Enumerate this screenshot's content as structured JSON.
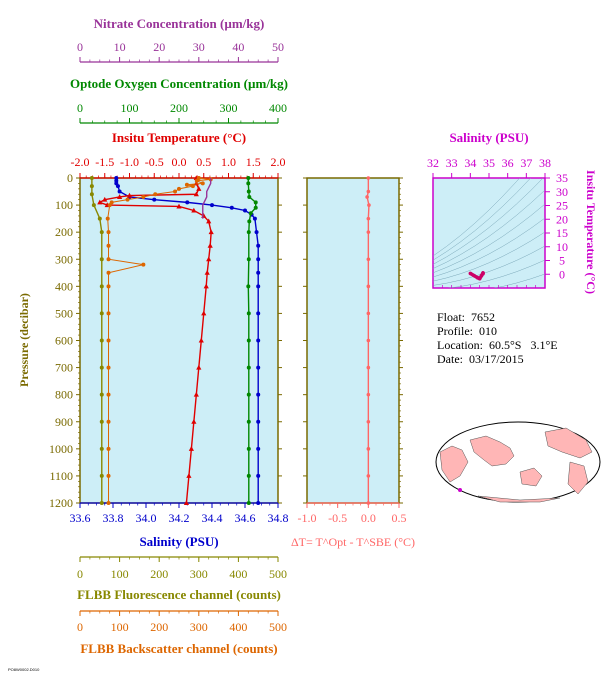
{
  "chart_data": [
    {
      "type": "line",
      "panel": "main-profile",
      "axes": {
        "pressure": {
          "label": "Pressure (decibar)",
          "range": [
            0,
            1200
          ],
          "ticks": [
            0,
            100,
            200,
            300,
            400,
            500,
            600,
            700,
            800,
            900,
            1000,
            1100,
            1200
          ],
          "inverted": true
        },
        "salinity": {
          "label": "Salinity (PSU)",
          "range": [
            33.6,
            34.8
          ],
          "ticks": [
            "33.6",
            "33.8",
            "34.0",
            "34.2",
            "34.4",
            "34.6",
            "34.8"
          ],
          "color": "#0000cc"
        },
        "temperature": {
          "label": "Insitu Temperature (°C)",
          "range": [
            -2.0,
            2.0
          ],
          "ticks": [
            "-2.0",
            "-1.5",
            "-1.0",
            "-0.5",
            "0.0",
            "0.5",
            "1.0",
            "1.5",
            "2.0"
          ],
          "color": "#e00000"
        },
        "oxygen": {
          "label": "Optode Oxygen Concentration (µm/kg)",
          "range": [
            0,
            400
          ],
          "ticks": [
            "0",
            "100",
            "200",
            "300",
            "400"
          ],
          "color": "#008800"
        },
        "nitrate": {
          "label": "Nitrate Concentration (µm/kg)",
          "range": [
            0,
            50
          ],
          "ticks": [
            "0",
            "10",
            "20",
            "30",
            "40",
            "50"
          ],
          "color": "#993399"
        },
        "fluorescence": {
          "label": "FLBB Fluorescence channel (counts)",
          "range": [
            0,
            500
          ],
          "ticks": [
            "0",
            "100",
            "200",
            "300",
            "400",
            "500"
          ],
          "color": "#888800"
        },
        "backscatter": {
          "label": "FLBB Backscatter channel (counts)",
          "range": [
            0,
            500
          ],
          "ticks": [
            "0",
            "100",
            "200",
            "300",
            "400",
            "500"
          ],
          "color": "#dd6600"
        }
      },
      "series": [
        {
          "key": "salinity",
          "color": "#0000cc",
          "marker": "circle",
          "points": [
            [
              0,
              33.82
            ],
            [
              10,
              33.82
            ],
            [
              20,
              33.82
            ],
            [
              30,
              33.83
            ],
            [
              50,
              33.84
            ],
            [
              70,
              33.9
            ],
            [
              80,
              34.05
            ],
            [
              90,
              34.25
            ],
            [
              100,
              34.4
            ],
            [
              110,
              34.52
            ],
            [
              120,
              34.6
            ],
            [
              135,
              34.64
            ],
            [
              150,
              34.66
            ],
            [
              200,
              34.67
            ],
            [
              250,
              34.68
            ],
            [
              300,
              34.68
            ],
            [
              350,
              34.68
            ],
            [
              400,
              34.68
            ],
            [
              500,
              34.68
            ],
            [
              600,
              34.68
            ],
            [
              700,
              34.68
            ],
            [
              800,
              34.68
            ],
            [
              900,
              34.68
            ],
            [
              1000,
              34.68
            ],
            [
              1100,
              34.68
            ],
            [
              1200,
              34.68
            ]
          ]
        },
        {
          "key": "temperature",
          "color": "#e00000",
          "marker": "triangle",
          "points": [
            [
              0,
              0.35
            ],
            [
              20,
              0.35
            ],
            [
              40,
              0.4
            ],
            [
              60,
              0.35
            ],
            [
              65,
              -1.0
            ],
            [
              70,
              -1.2
            ],
            [
              80,
              -1.5
            ],
            [
              90,
              -1.6
            ],
            [
              100,
              -1.45
            ],
            [
              105,
              0.0
            ],
            [
              120,
              0.3
            ],
            [
              140,
              0.5
            ],
            [
              160,
              0.6
            ],
            [
              200,
              0.65
            ],
            [
              250,
              0.63
            ],
            [
              300,
              0.6
            ],
            [
              350,
              0.57
            ],
            [
              400,
              0.55
            ],
            [
              500,
              0.5
            ],
            [
              600,
              0.45
            ],
            [
              700,
              0.4
            ],
            [
              800,
              0.35
            ],
            [
              900,
              0.3
            ],
            [
              1000,
              0.25
            ],
            [
              1100,
              0.2
            ],
            [
              1200,
              0.15
            ]
          ]
        },
        {
          "key": "oxygen",
          "color": "#008800",
          "marker": "circle",
          "points": [
            [
              0,
              340
            ],
            [
              20,
              340
            ],
            [
              50,
              341
            ],
            [
              70,
              342
            ],
            [
              90,
              355
            ],
            [
              110,
              355
            ],
            [
              130,
              345
            ],
            [
              160,
              342
            ],
            [
              200,
              341
            ],
            [
              300,
              341
            ],
            [
              400,
              340
            ],
            [
              500,
              341
            ],
            [
              600,
              341
            ],
            [
              700,
              341
            ],
            [
              800,
              341
            ],
            [
              900,
              341
            ],
            [
              1000,
              341
            ],
            [
              1100,
              341
            ],
            [
              1200,
              341
            ]
          ]
        },
        {
          "key": "fluorescence",
          "color": "#888800",
          "marker": "circle",
          "points": [
            [
              0,
              30
            ],
            [
              30,
              30
            ],
            [
              60,
              30
            ],
            [
              100,
              35
            ],
            [
              150,
              50
            ],
            [
              200,
              55
            ],
            [
              300,
              55
            ],
            [
              400,
              55
            ],
            [
              500,
              55
            ],
            [
              600,
              55
            ],
            [
              700,
              55
            ],
            [
              800,
              55
            ],
            [
              900,
              55
            ],
            [
              1000,
              55
            ],
            [
              1100,
              55
            ],
            [
              1200,
              55
            ]
          ]
        },
        {
          "key": "backscatter",
          "color": "#dd6600",
          "marker": "circle",
          "points": [
            [
              0,
              300
            ],
            [
              5,
              330
            ],
            [
              10,
              295
            ],
            [
              20,
              310
            ],
            [
              25,
              270
            ],
            [
              30,
              285
            ],
            [
              40,
              250
            ],
            [
              50,
              240
            ],
            [
              60,
              190
            ],
            [
              70,
              160
            ],
            [
              80,
              120
            ],
            [
              90,
              80
            ],
            [
              100,
              75
            ],
            [
              150,
              70
            ],
            [
              200,
              72
            ],
            [
              250,
              72
            ],
            [
              300,
              72
            ],
            [
              320,
              160
            ],
            [
              350,
              72
            ],
            [
              400,
              72
            ],
            [
              500,
              72
            ],
            [
              600,
              72
            ],
            [
              700,
              72
            ],
            [
              800,
              72
            ],
            [
              900,
              72
            ],
            [
              1000,
              72
            ],
            [
              1100,
              72
            ],
            [
              1200,
              72
            ]
          ]
        },
        {
          "key": "nitrate",
          "color": "#993399",
          "marker": "none",
          "points": [
            [
              0,
              33
            ],
            [
              20,
              33
            ],
            [
              50,
              32
            ],
            [
              70,
              32
            ],
            [
              100,
              31
            ],
            [
              150,
              31
            ]
          ]
        }
      ]
    },
    {
      "type": "line",
      "panel": "temperature-difference",
      "axes": {
        "x": {
          "label": "ΔT= T^Opt - T^SBE (°C)",
          "range": [
            -1.0,
            0.5
          ],
          "ticks": [
            "-1.0",
            "-0.5",
            "0.0",
            "0.5"
          ],
          "color": "#ff6666"
        },
        "pressure": {
          "range": [
            0,
            1200
          ]
        }
      },
      "series": [
        {
          "name": "",
          "color": "#ff6666",
          "points": [
            [
              0,
              0.0
            ],
            [
              50,
              0.0
            ],
            [
              70,
              -0.02
            ],
            [
              100,
              0.01
            ],
            [
              150,
              0.0
            ],
            [
              200,
              0.0
            ],
            [
              300,
              0.0
            ],
            [
              400,
              0.0
            ],
            [
              500,
              0.0
            ],
            [
              600,
              0.0
            ],
            [
              700,
              0.0
            ],
            [
              800,
              0.0
            ],
            [
              900,
              0.0
            ],
            [
              1000,
              0.0
            ],
            [
              1100,
              0.0
            ],
            [
              1200,
              0.0
            ]
          ]
        }
      ]
    },
    {
      "type": "scatter",
      "panel": "ts-diagram",
      "axes": {
        "x": {
          "label": "Salinity (PSU)",
          "range": [
            32,
            38
          ],
          "ticks": [
            "32",
            "33",
            "34",
            "35",
            "36",
            "37",
            "38"
          ],
          "color": "#cc00cc"
        },
        "y": {
          "label": "Insitu Temperature (°C)",
          "range": [
            -5,
            35
          ],
          "ticks": [
            "0",
            "5",
            "10",
            "15",
            "20",
            "25",
            "30",
            "35"
          ],
          "color": "#cc00cc"
        }
      },
      "series": [
        {
          "name": "",
          "color": "#cc0066",
          "points": [
            [
              34.0,
              0.3
            ],
            [
              34.2,
              -0.5
            ],
            [
              34.4,
              -1.3
            ],
            [
              34.5,
              -1.6
            ],
            [
              34.6,
              -0.5
            ],
            [
              34.68,
              0.5
            ],
            [
              34.68,
              0.2
            ]
          ]
        }
      ]
    }
  ],
  "info": {
    "float": "Float:  7652",
    "profile": "Profile:  010",
    "location": "Location:  60.5°S   3.1°E",
    "date": "Date:  03/17/2015"
  },
  "map": {
    "icon": "world-map-icon",
    "ocean_color": "#ffffff",
    "land_color": "#ffb6b6"
  },
  "footer": "PO8W0002.D010     "
}
